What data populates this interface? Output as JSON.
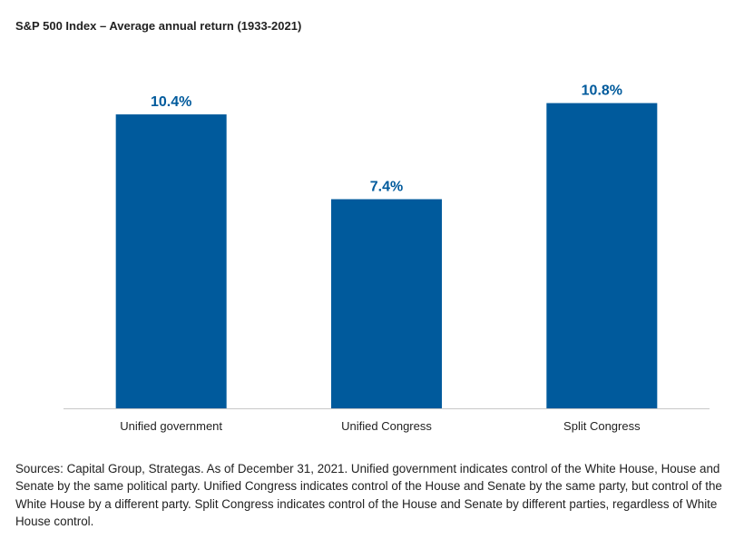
{
  "chart_data": {
    "type": "bar",
    "title": "S&P 500 Index – Average annual return (1933-2021)",
    "categories": [
      "Unified government",
      "Unified Congress",
      "Split Congress"
    ],
    "values": [
      10.4,
      7.4,
      10.8
    ],
    "value_labels": [
      "10.4%",
      "7.4%",
      "10.8%"
    ],
    "unit": "%",
    "ylim": [
      0,
      12.2
    ],
    "grid": false,
    "legend": "none",
    "bar_color": "#005A9C",
    "label_color": "#005A9C",
    "baseline_color": "#c8c8c8"
  },
  "footnote": "Sources: Capital Group, Strategas. As of December 31, 2021. Unified government indicates control of the White House, House and Senate by the same political party. Unified Congress indicates control of the House and Senate by the same party, but control of the White House by a different party. Split Congress indicates control of the House and Senate by different parties, regardless of White House control."
}
